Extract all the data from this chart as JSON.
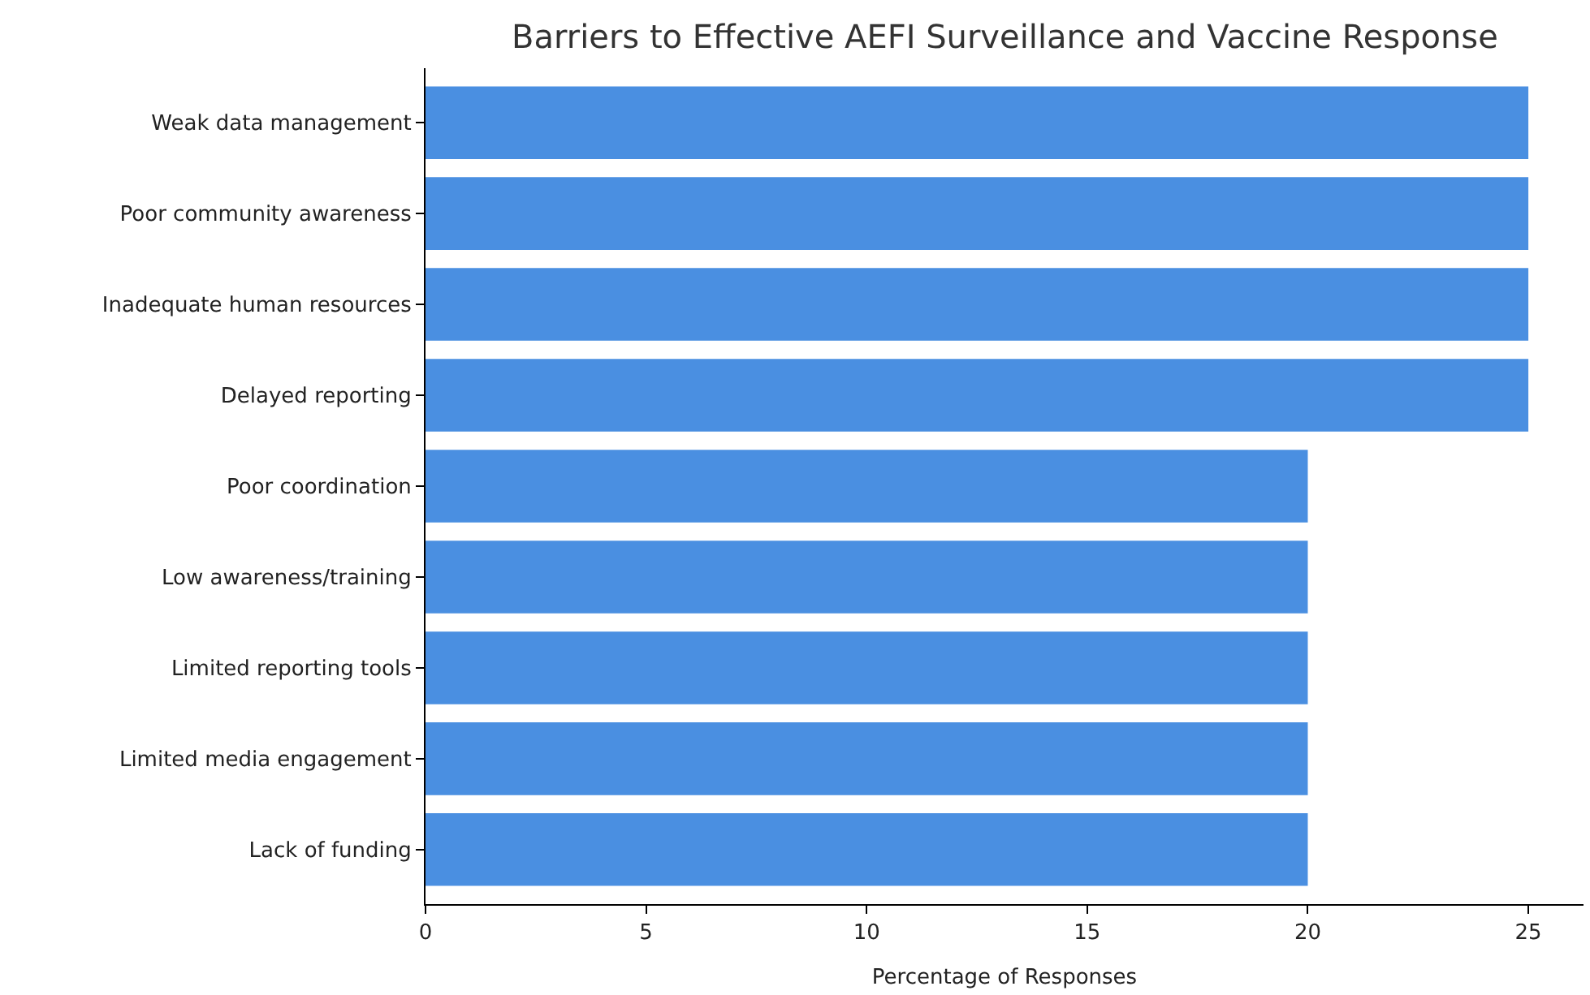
{
  "chart_data": {
    "type": "bar",
    "orientation": "horizontal",
    "title": "Barriers to Effective AEFI Surveillance and Vaccine Response",
    "xlabel": "Percentage of Responses",
    "categories": [
      "Weak data management",
      "Poor community awareness",
      "Inadequate human resources",
      "Delayed reporting",
      "Poor coordination",
      "Low awareness/training",
      "Limited reporting tools",
      "Limited media engagement",
      "Lack of funding"
    ],
    "values": [
      25,
      25,
      25,
      25,
      20,
      20,
      20,
      20,
      20
    ],
    "color": "#4a8fe1",
    "xlim": [
      0,
      26.25
    ],
    "xticks": [
      0,
      5,
      10,
      15,
      20,
      25
    ],
    "grid": false,
    "legend": false
  }
}
